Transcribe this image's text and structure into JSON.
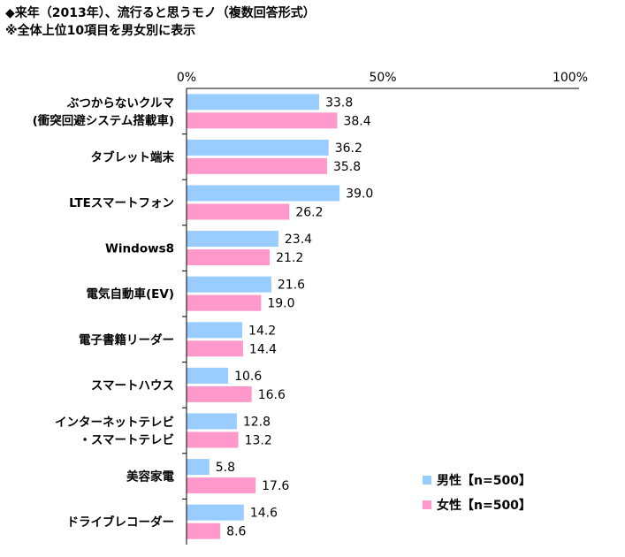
{
  "title": "◆来年（2013年）、流行ると思うモノ（複数回答形式）",
  "subtitle": "※全体上位10項目を男女別に表示",
  "colors": {
    "male": "#99ccff",
    "female": "#ff99cc",
    "axis": "#000000"
  },
  "chart_data": {
    "type": "bar",
    "orientation": "horizontal",
    "title": "◆来年（2013年）、流行ると思うモノ（複数回答形式）",
    "subtitle": "※全体上位10項目を男女別に表示",
    "xlim": [
      0,
      100
    ],
    "xticks": [
      0,
      50,
      100
    ],
    "xtick_labels": [
      "0%",
      "50%",
      "100%"
    ],
    "legend_position": "bottom-right",
    "categories": [
      [
        "ぶつからないクルマ",
        "(衝突回避システム搭載車)"
      ],
      [
        "タブレット端末"
      ],
      [
        "LTEスマートフォン"
      ],
      [
        "Windows8"
      ],
      [
        "電気自動車(EV)"
      ],
      [
        "電子書籍リーダー"
      ],
      [
        "スマートハウス"
      ],
      [
        "インターネットテレビ",
        "・スマートテレビ"
      ],
      [
        "美容家電"
      ],
      [
        "ドライブレコーダー"
      ]
    ],
    "series": [
      {
        "name": "男性【n=500】",
        "color": "#99ccff",
        "values": [
          33.8,
          36.2,
          39.0,
          23.4,
          21.6,
          14.2,
          10.6,
          12.8,
          5.8,
          14.6
        ],
        "labels": [
          "33.8",
          "36.2",
          "39.0",
          "23.4",
          "21.6",
          "14.2",
          "10.6",
          "12.8",
          "5.8",
          "14.6"
        ]
      },
      {
        "name": "女性【n=500】",
        "color": "#ff99cc",
        "values": [
          38.4,
          35.8,
          26.2,
          21.2,
          19.0,
          14.4,
          16.6,
          13.2,
          17.6,
          8.6
        ],
        "labels": [
          "38.4",
          "35.8",
          "26.2",
          "21.2",
          "19.0",
          "14.4",
          "16.6",
          "13.2",
          "17.6",
          "8.6"
        ]
      }
    ]
  }
}
